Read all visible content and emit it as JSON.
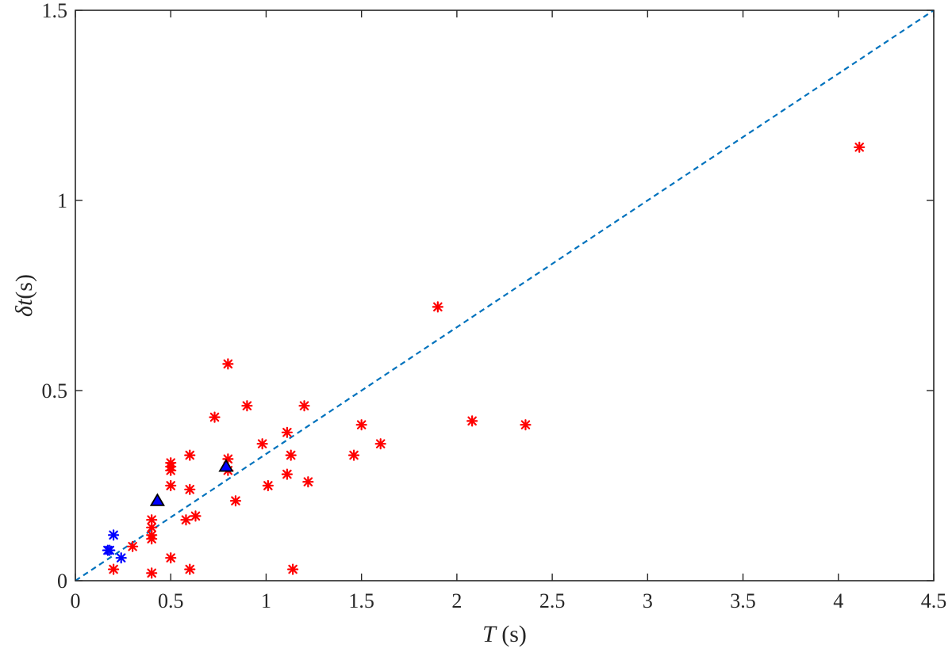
{
  "chart_data": {
    "type": "scatter",
    "xlabel": {
      "var": "T",
      "rest": " (s)"
    },
    "ylabel": {
      "var": "δt",
      "rest": "(s)"
    },
    "xlim": [
      0,
      4.5
    ],
    "ylim": [
      0,
      1.5
    ],
    "xticks": [
      "0",
      "0.5",
      "1",
      "1.5",
      "2",
      "2.5",
      "3",
      "3.5",
      "4",
      "4.5"
    ],
    "yticks": [
      "0",
      "0.5",
      "1",
      "1.5"
    ],
    "grid": false,
    "reference_line": {
      "x": [
        0,
        4.5
      ],
      "y": [
        0,
        1.5
      ],
      "style": "dashed",
      "color": "#0072BD"
    },
    "series": [
      {
        "marker": "asterisk",
        "color": "#ff0000",
        "points": [
          [
            0.2,
            0.03
          ],
          [
            0.3,
            0.09
          ],
          [
            0.4,
            0.02
          ],
          [
            0.4,
            0.11
          ],
          [
            0.4,
            0.12
          ],
          [
            0.4,
            0.14
          ],
          [
            0.4,
            0.16
          ],
          [
            0.5,
            0.06
          ],
          [
            0.5,
            0.25
          ],
          [
            0.5,
            0.29
          ],
          [
            0.5,
            0.3
          ],
          [
            0.5,
            0.31
          ],
          [
            0.58,
            0.16
          ],
          [
            0.6,
            0.03
          ],
          [
            0.6,
            0.24
          ],
          [
            0.6,
            0.33
          ],
          [
            0.63,
            0.17
          ],
          [
            0.73,
            0.43
          ],
          [
            0.8,
            0.57
          ],
          [
            0.8,
            0.29
          ],
          [
            0.8,
            0.32
          ],
          [
            0.84,
            0.21
          ],
          [
            0.9,
            0.46
          ],
          [
            0.98,
            0.36
          ],
          [
            1.01,
            0.25
          ],
          [
            1.11,
            0.28
          ],
          [
            1.11,
            0.39
          ],
          [
            1.13,
            0.33
          ],
          [
            1.14,
            0.03
          ],
          [
            1.2,
            0.46
          ],
          [
            1.22,
            0.26
          ],
          [
            1.46,
            0.33
          ],
          [
            1.5,
            0.41
          ],
          [
            1.6,
            0.36
          ],
          [
            1.9,
            0.72
          ],
          [
            2.08,
            0.42
          ],
          [
            2.36,
            0.41
          ],
          [
            4.11,
            1.14
          ]
        ]
      },
      {
        "marker": "asterisk",
        "color": "#0000ff",
        "points": [
          [
            0.17,
            0.08
          ],
          [
            0.18,
            0.08
          ],
          [
            0.2,
            0.12
          ],
          [
            0.24,
            0.06
          ]
        ]
      },
      {
        "marker": "triangle",
        "color": "#0000ff",
        "edge": "#000000",
        "points": [
          [
            0.43,
            0.21
          ],
          [
            0.79,
            0.3
          ]
        ]
      }
    ]
  }
}
